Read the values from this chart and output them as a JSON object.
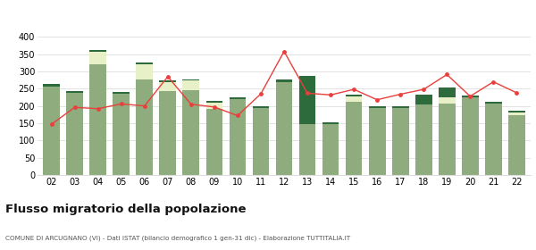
{
  "years": [
    "02",
    "03",
    "04",
    "05",
    "06",
    "07",
    "08",
    "09",
    "10",
    "11",
    "12",
    "13",
    "14",
    "15",
    "16",
    "17",
    "18",
    "19",
    "20",
    "21",
    "22"
  ],
  "iscritti_comuni": [
    255,
    238,
    320,
    235,
    278,
    242,
    245,
    192,
    220,
    193,
    270,
    148,
    148,
    213,
    193,
    193,
    205,
    208,
    225,
    208,
    172
  ],
  "iscritti_estero": [
    0,
    0,
    38,
    0,
    42,
    28,
    28,
    18,
    0,
    0,
    0,
    0,
    0,
    15,
    0,
    0,
    0,
    18,
    0,
    0,
    10
  ],
  "iscritti_altri": [
    10,
    5,
    5,
    5,
    5,
    5,
    5,
    5,
    5,
    5,
    8,
    140,
    5,
    5,
    5,
    5,
    28,
    28,
    5,
    5,
    5
  ],
  "cancellati": [
    147,
    196,
    192,
    206,
    200,
    285,
    205,
    197,
    172,
    235,
    358,
    237,
    232,
    248,
    218,
    234,
    248,
    291,
    228,
    270,
    238
  ],
  "color_comuni": "#8fac7e",
  "color_estero": "#e8f0c8",
  "color_altri": "#2d6b3c",
  "color_cancellati": "#e8403c",
  "ylim": [
    0,
    420
  ],
  "yticks": [
    0,
    50,
    100,
    150,
    200,
    250,
    300,
    350,
    400
  ],
  "title": "Flusso migratorio della popolazione",
  "subtitle": "COMUNE DI ARCUGNANO (VI) - Dati ISTAT (bilancio demografico 1 gen-31 dic) - Elaborazione TUTTITALIA.IT",
  "bg_color": "#ffffff",
  "grid_color": "#dddddd"
}
